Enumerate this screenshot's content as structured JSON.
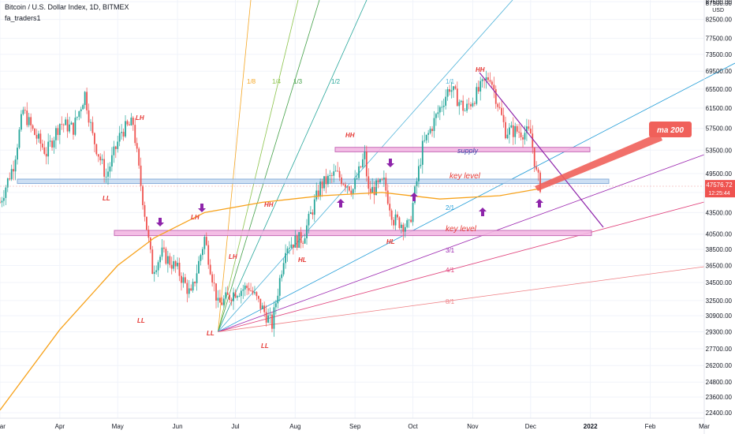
{
  "header": {
    "title": "Bitcoin / U.S. Dollar Index, 1D, BITMEX",
    "author": "fa_traders1"
  },
  "price_axis": {
    "currency": "USD",
    "last_price": "47576.72",
    "countdown": "12:25:44"
  },
  "colors": {
    "up": "#26a69a",
    "down": "#ef5350",
    "ma": "#f7a21b",
    "zone_fill": "#f3b7e3",
    "zone_stroke": "#c05fb0",
    "key_fill": "#c8dcf2",
    "key_stroke": "#7ea7d6",
    "arrow": "#8e24aa",
    "label_red": "#e53935",
    "badge": "#f0605a"
  },
  "chart_data": {
    "type": "candlestick",
    "symbol": "BTCUSD",
    "interval": "1D",
    "y_scale": "log",
    "ylim": [
      22000,
      88000
    ],
    "y_ticks": [
      "22400.00",
      "23600.00",
      "24800.00",
      "26200.00",
      "27700.00",
      "29300.00",
      "30900.00",
      "32500.00",
      "34500.00",
      "36500.00",
      "38500.00",
      "40500.00",
      "43500.00",
      "46500.00",
      "49500.00",
      "53500.00",
      "57500.00",
      "61500.00",
      "65500.00",
      "69500.00",
      "73500.00",
      "77500.00",
      "82500.00",
      "87500.00"
    ],
    "y_tick_values": [
      22400,
      23600,
      24800,
      26200,
      27700,
      29300,
      30900,
      32500,
      34500,
      36500,
      38500,
      40500,
      43500,
      46500,
      49500,
      53500,
      57500,
      61500,
      65500,
      69500,
      73500,
      77500,
      82500,
      87500
    ],
    "x_ticks": [
      "Mar",
      "Apr",
      "May",
      "Jun",
      "Jul",
      "Aug",
      "Sep",
      "Oct",
      "Nov",
      "Dec",
      "2022",
      "Feb",
      "Mar"
    ],
    "x_tick_dates": [
      "2021-03-01",
      "2021-04-01",
      "2021-05-01",
      "2021-06-01",
      "2021-07-01",
      "2021-08-01",
      "2021-09-01",
      "2021-10-01",
      "2021-11-01",
      "2021-12-01",
      "2022-01-01",
      "2022-02-01",
      "2022-03-01"
    ],
    "x_range": [
      "2021-03-01",
      "2022-03-01"
    ],
    "price_path": [
      [
        "2021-03-01",
        45000
      ],
      [
        "2021-03-08",
        51000
      ],
      [
        "2021-03-13",
        61000
      ],
      [
        "2021-03-18",
        57000
      ],
      [
        "2021-03-25",
        53000
      ],
      [
        "2021-04-01",
        58500
      ],
      [
        "2021-04-08",
        57500
      ],
      [
        "2021-04-14",
        64500
      ],
      [
        "2021-04-18",
        56000
      ],
      [
        "2021-04-25",
        49000
      ],
      [
        "2021-05-03",
        57000
      ],
      [
        "2021-05-09",
        58500
      ],
      [
        "2021-05-12",
        50000
      ],
      [
        "2021-05-19",
        36000
      ],
      [
        "2021-05-24",
        38000
      ],
      [
        "2021-06-01",
        36000
      ],
      [
        "2021-06-08",
        33000
      ],
      [
        "2021-06-15",
        40000
      ],
      [
        "2021-06-22",
        32000
      ],
      [
        "2021-07-01",
        33500
      ],
      [
        "2021-07-08",
        34000
      ],
      [
        "2021-07-20",
        30000
      ],
      [
        "2021-07-27",
        39000
      ],
      [
        "2021-08-05",
        40000
      ],
      [
        "2021-08-14",
        47500
      ],
      [
        "2021-08-22",
        49500
      ],
      [
        "2021-08-31",
        47000
      ],
      [
        "2021-09-06",
        52500
      ],
      [
        "2021-09-08",
        46500
      ],
      [
        "2021-09-16",
        48000
      ],
      [
        "2021-09-21",
        42500
      ],
      [
        "2021-09-29",
        41500
      ],
      [
        "2021-10-06",
        54000
      ],
      [
        "2021-10-15",
        61500
      ],
      [
        "2021-10-20",
        66000
      ],
      [
        "2021-10-28",
        61000
      ],
      [
        "2021-11-08",
        67500
      ],
      [
        "2021-11-10",
        68500
      ],
      [
        "2021-11-18",
        57000
      ],
      [
        "2021-11-24",
        57000
      ],
      [
        "2021-12-01",
        56500
      ],
      [
        "2021-12-04",
        49500
      ],
      [
        "2021-12-06",
        47600
      ]
    ],
    "ma200": {
      "label": "ma 200",
      "points": [
        [
          "2021-03-01",
          22600
        ],
        [
          "2021-04-01",
          29500
        ],
        [
          "2021-05-01",
          36500
        ],
        [
          "2021-05-20",
          40000
        ],
        [
          "2021-06-15",
          43500
        ],
        [
          "2021-07-15",
          45000
        ],
        [
          "2021-08-15",
          46000
        ],
        [
          "2021-09-15",
          46500
        ],
        [
          "2021-10-15",
          45500
        ],
        [
          "2021-11-15",
          46000
        ],
        [
          "2021-12-06",
          47100
        ]
      ]
    },
    "fan_labels": [
      "1/8",
      "1/4",
      "1/3",
      "1/2",
      "1/1",
      "2/1",
      "3/1",
      "4/1",
      "8/1"
    ],
    "zones": [
      {
        "label": "supply",
        "low": 53200,
        "high": 54000
      },
      {
        "label": "key level",
        "low": 47900,
        "high": 48600
      },
      {
        "label": "key level",
        "low": 40300,
        "high": 41000
      }
    ],
    "swing_labels": [
      "LH",
      "LL",
      "LH",
      "LL",
      "LL",
      "LH",
      "LL",
      "HH",
      "HH",
      "HL",
      "HL",
      "HH"
    ],
    "annotations": [
      "ma 200"
    ]
  }
}
